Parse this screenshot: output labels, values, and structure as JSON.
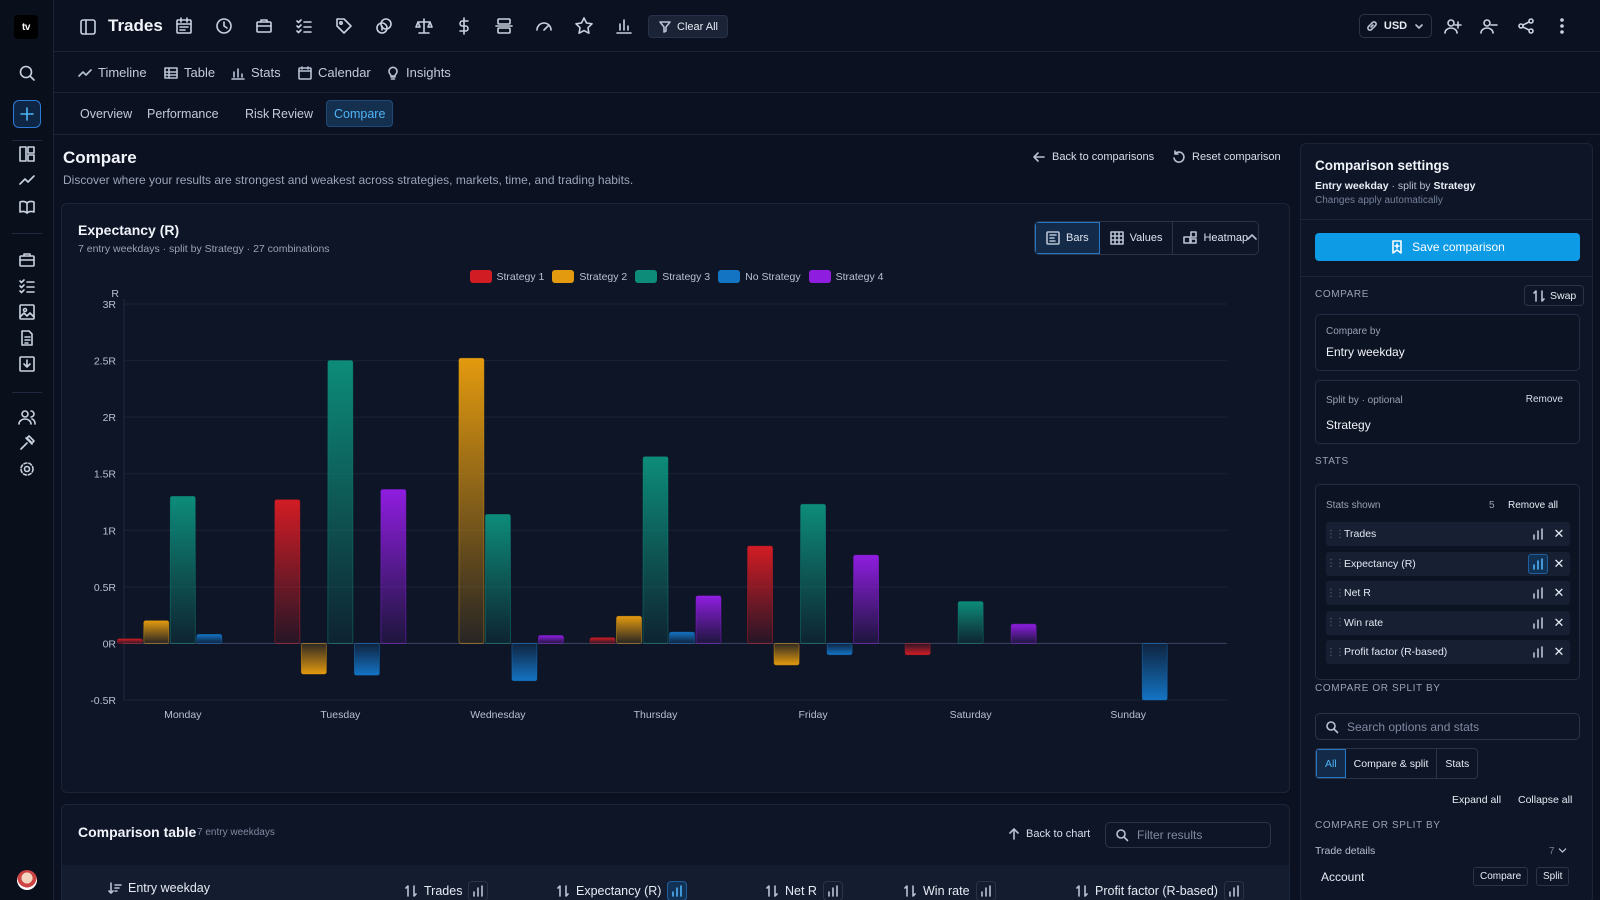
{
  "app": {
    "logo": "tv",
    "page_title": "Trades"
  },
  "toolbar": {
    "clear_all": "Clear All",
    "currency": "USD",
    "icons": [
      "calendar-icon",
      "clock-icon",
      "briefcase-icon",
      "checklist-icon",
      "tag-icon",
      "coins-icon",
      "scale-icon",
      "dollar-icon",
      "split-icon",
      "gauge-icon",
      "star-icon",
      "bar-chart-icon"
    ]
  },
  "view_tabs": [
    "Timeline",
    "Table",
    "Stats",
    "Calendar",
    "Insights"
  ],
  "sub_tabs": [
    "Overview",
    "Performance",
    "Risk",
    "Review",
    "Compare"
  ],
  "active_sub_tab": "Compare",
  "header": {
    "title": "Compare",
    "description": "Discover where your results are strongest and weakest across strategies, markets, time, and trading habits.",
    "back_to_comparisons": "Back to comparisons",
    "reset_comparison": "Reset comparison"
  },
  "chart_card": {
    "title": "Expectancy (R)",
    "subtitle": "7 entry weekdays · split by Strategy · 27 combinations",
    "views": [
      "Bars",
      "Values",
      "Heatmap"
    ],
    "active_view": "Bars"
  },
  "chart_data": {
    "type": "bar",
    "ylabel": "R",
    "ylim": [
      -0.5,
      3
    ],
    "yticks": [
      "3R",
      "2.5R",
      "2R",
      "1.5R",
      "1R",
      "0.5R",
      "0R",
      "-0.5R"
    ],
    "ytick_values": [
      3,
      2.5,
      2,
      1.5,
      1,
      0.5,
      0,
      -0.5
    ],
    "categories": [
      "Monday",
      "Tuesday",
      "Wednesday",
      "Thursday",
      "Friday",
      "Saturday",
      "Sunday"
    ],
    "legend_position": "top-center",
    "grid": true,
    "series": [
      {
        "name": "Strategy 1",
        "color": "#d21c24",
        "values": [
          0.04,
          1.27,
          null,
          0.05,
          0.86,
          -0.1,
          null
        ]
      },
      {
        "name": "Strategy 2",
        "color": "#e39a0e",
        "values": [
          0.2,
          -0.27,
          2.52,
          0.24,
          -0.19,
          null,
          null
        ]
      },
      {
        "name": "Strategy 3",
        "color": "#0d8c7a",
        "values": [
          1.3,
          2.5,
          1.14,
          1.65,
          1.23,
          0.37,
          null
        ]
      },
      {
        "name": "No Strategy",
        "color": "#1474c4",
        "values": [
          0.08,
          -0.28,
          -0.33,
          0.1,
          -0.1,
          null,
          -0.5
        ]
      },
      {
        "name": "Strategy 4",
        "color": "#8f1de0",
        "values": [
          null,
          1.36,
          0.07,
          0.42,
          0.78,
          0.17,
          null
        ]
      }
    ]
  },
  "table_card": {
    "title": "Comparison table",
    "count": "7 entry weekdays",
    "back_to_chart": "Back to chart",
    "filter_placeholder": "Filter results",
    "columns": [
      "Entry weekday",
      "Trades",
      "Expectancy (R)",
      "Net R",
      "Win rate",
      "Profit factor (R-based)"
    ]
  },
  "settings": {
    "title": "Comparison settings",
    "compare_by_value": "Entry weekday",
    "split_connector": " · split by ",
    "split_by_value": "Strategy",
    "note": "Changes apply automatically",
    "save": "Save comparison",
    "compare_section": "COMPARE",
    "swap": "Swap",
    "compare_by_label": "Compare by",
    "split_by_label": "Split by · optional",
    "remove": "Remove",
    "stats_section": "STATS",
    "stats_shown_label": "Stats shown",
    "stats_count": "5",
    "remove_all": "Remove all",
    "stats": [
      "Trades",
      "Expectancy (R)",
      "Net R",
      "Win rate",
      "Profit factor (R-based)"
    ],
    "charted_stat": "Expectancy (R)",
    "compare_split_section": "COMPARE OR SPLIT BY",
    "search_placeholder": "Search options and stats",
    "filter_options": [
      "All",
      "Compare & split",
      "Stats"
    ],
    "active_filter": "All",
    "expand_all": "Expand all",
    "collapse_all": "Collapse all",
    "compare_split_section_2": "COMPARE OR SPLIT BY",
    "trade_details": "Trade details",
    "trade_details_count": "7",
    "account": "Account",
    "compare_btn": "Compare",
    "split_btn": "Split"
  }
}
